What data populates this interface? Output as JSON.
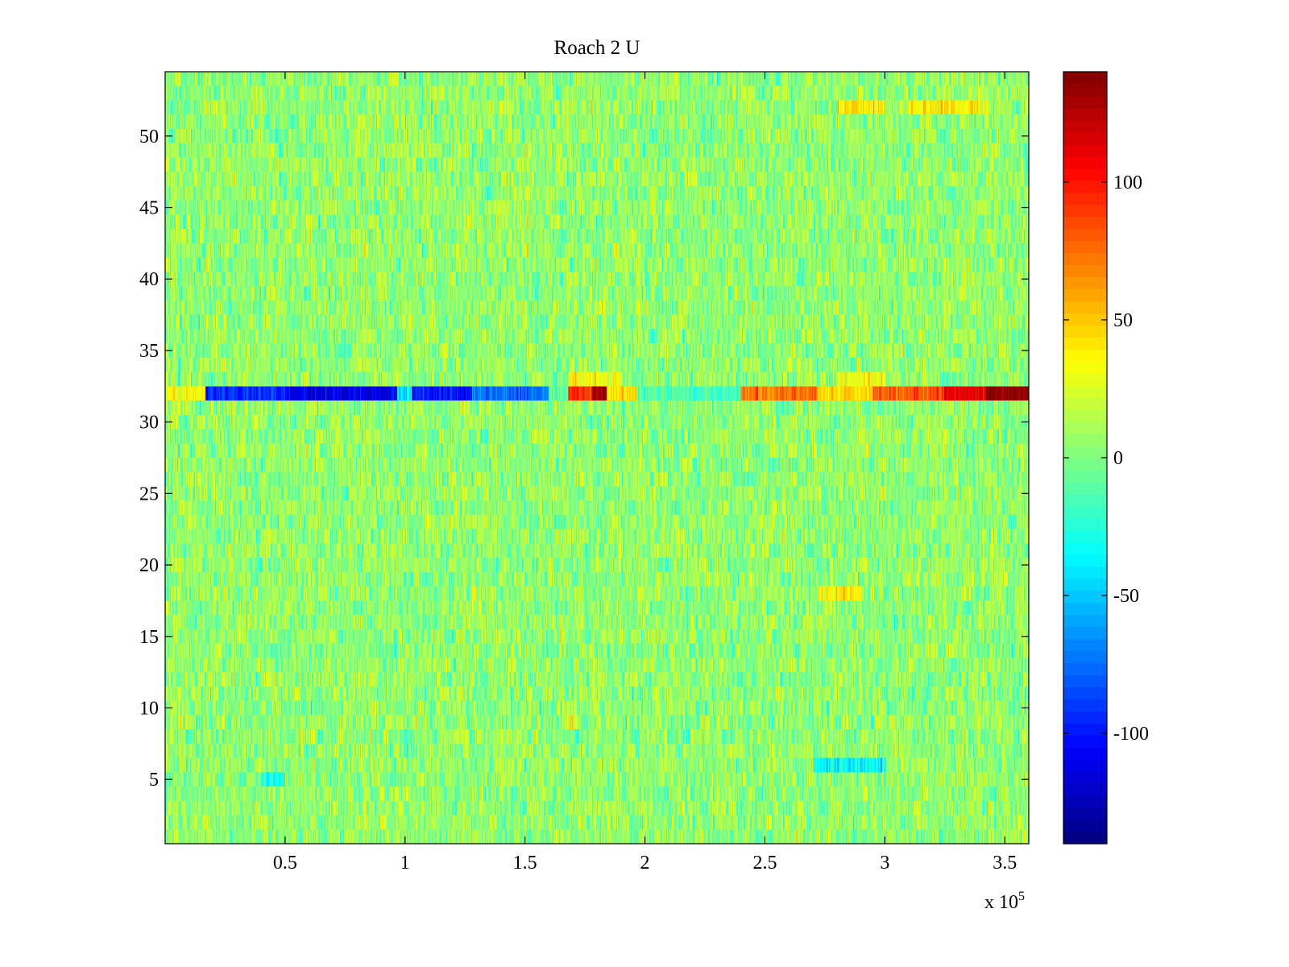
{
  "chart_data": {
    "type": "heatmap",
    "title": "Roach 2 U",
    "xlabel": "",
    "ylabel": "",
    "xlim": [
      0,
      360000
    ],
    "ylim": [
      0.5,
      54.5
    ],
    "x_scale_label": {
      "prefix": "x 10",
      "exponent": "5"
    },
    "x_ticks": [
      50000,
      100000,
      150000,
      200000,
      250000,
      300000,
      350000
    ],
    "x_tick_labels": [
      "0.5",
      "1",
      "1.5",
      "2",
      "2.5",
      "3",
      "3.5"
    ],
    "y_ticks": [
      5,
      10,
      15,
      20,
      25,
      30,
      35,
      40,
      45,
      50
    ],
    "y_tick_labels": [
      "5",
      "10",
      "15",
      "20",
      "25",
      "30",
      "35",
      "40",
      "45",
      "50"
    ],
    "rows": 54,
    "colormap": "jet",
    "clim": [
      -140,
      140
    ],
    "colorbar": {
      "ticks": [
        -100,
        -50,
        0,
        50,
        100
      ],
      "tick_labels": [
        "-100",
        "-50",
        "0",
        "50",
        "100"
      ],
      "location": "right"
    },
    "background_noise": {
      "mean": 5,
      "spread": 22
    },
    "anomaly_row": 32,
    "anomaly_segments": [
      {
        "x_start": 0,
        "x_end": 17000,
        "value": 35
      },
      {
        "x_start": 17000,
        "x_end": 50000,
        "value": -95
      },
      {
        "x_start": 50000,
        "x_end": 97000,
        "value": -112
      },
      {
        "x_start": 97000,
        "x_end": 103000,
        "value": -40
      },
      {
        "x_start": 103000,
        "x_end": 128000,
        "value": -100
      },
      {
        "x_start": 128000,
        "x_end": 160000,
        "value": -75
      },
      {
        "x_start": 160000,
        "x_end": 168000,
        "value": -10
      },
      {
        "x_start": 168000,
        "x_end": 178000,
        "value": 95
      },
      {
        "x_start": 178000,
        "x_end": 184000,
        "value": 130
      },
      {
        "x_start": 184000,
        "x_end": 197000,
        "value": 40
      },
      {
        "x_start": 197000,
        "x_end": 240000,
        "value": -15
      },
      {
        "x_start": 240000,
        "x_end": 272000,
        "value": 75
      },
      {
        "x_start": 272000,
        "x_end": 295000,
        "value": 45
      },
      {
        "x_start": 295000,
        "x_end": 325000,
        "value": 80
      },
      {
        "x_start": 325000,
        "x_end": 342000,
        "value": 110
      },
      {
        "x_start": 342000,
        "x_end": 360000,
        "value": 140
      }
    ],
    "warm_patches": [
      {
        "row": 52,
        "x_start": 280000,
        "x_end": 300000,
        "value": 40
      },
      {
        "row": 52,
        "x_start": 310000,
        "x_end": 340000,
        "value": 38
      },
      {
        "row": 18,
        "x_start": 272000,
        "x_end": 290000,
        "value": 42
      },
      {
        "row": 33,
        "x_start": 168000,
        "x_end": 190000,
        "value": 35
      },
      {
        "row": 33,
        "x_start": 280000,
        "x_end": 300000,
        "value": 30
      }
    ],
    "cool_patches": [
      {
        "row": 32,
        "x_start": 0,
        "x_end": 0,
        "value": 0
      },
      {
        "row": 6,
        "x_start": 270000,
        "x_end": 300000,
        "value": -35
      },
      {
        "row": 5,
        "x_start": 40000,
        "x_end": 50000,
        "value": -30
      }
    ]
  }
}
